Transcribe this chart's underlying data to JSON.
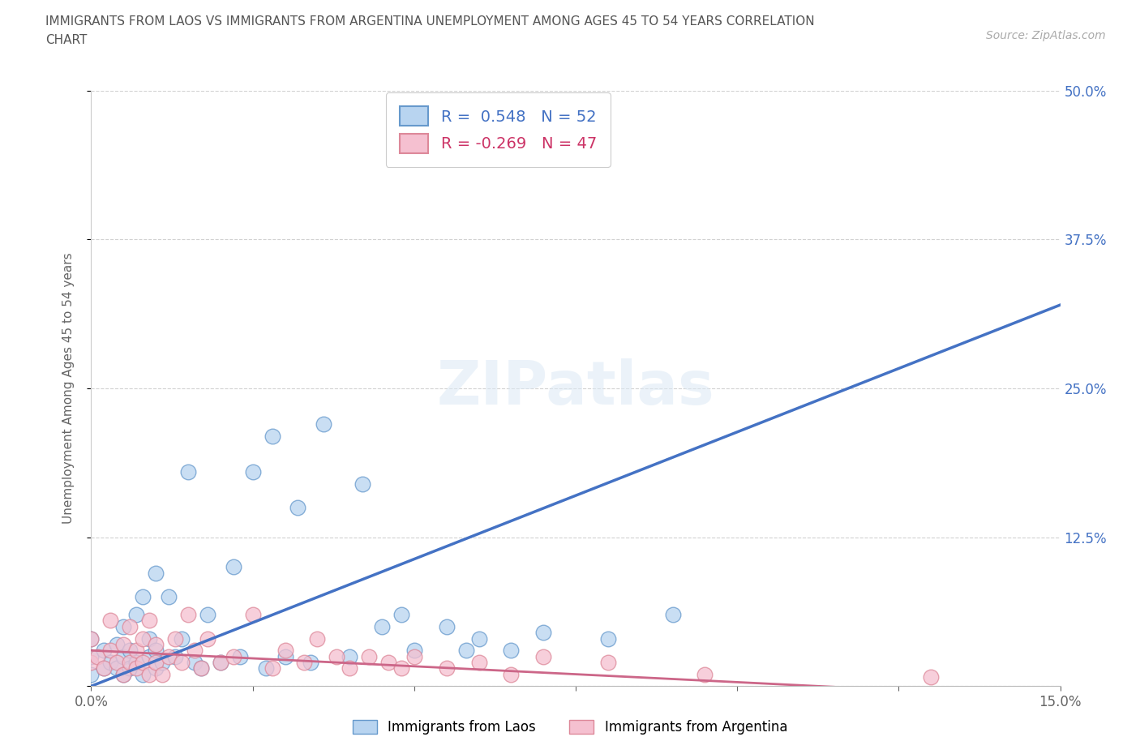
{
  "title_line1": "IMMIGRANTS FROM LAOS VS IMMIGRANTS FROM ARGENTINA UNEMPLOYMENT AMONG AGES 45 TO 54 YEARS CORRELATION",
  "title_line2": "CHART",
  "source_text": "Source: ZipAtlas.com",
  "ylabel": "Unemployment Among Ages 45 to 54 years",
  "xlim": [
    0.0,
    0.15
  ],
  "ylim": [
    0.0,
    0.5
  ],
  "xticks": [
    0.0,
    0.025,
    0.05,
    0.075,
    0.1,
    0.125,
    0.15
  ],
  "xticklabels": [
    "0.0%",
    "",
    "",
    "",
    "",
    "",
    "15.0%"
  ],
  "yticks": [
    0.0,
    0.125,
    0.25,
    0.375,
    0.5
  ],
  "yticklabels_right": [
    "",
    "12.5%",
    "25.0%",
    "37.5%",
    "50.0%"
  ],
  "laos_R": 0.548,
  "laos_N": 52,
  "argentina_R": -0.269,
  "argentina_N": 47,
  "laos_color": "#b8d4f0",
  "laos_edge_color": "#6699cc",
  "laos_line_color": "#4472c4",
  "argentina_color": "#f5c0d0",
  "argentina_edge_color": "#dd8899",
  "argentina_line_color": "#cc6688",
  "legend_label_laos": "Immigrants from Laos",
  "legend_label_argentina": "Immigrants from Argentina",
  "laos_trend_x0": 0.0,
  "laos_trend_y0": 0.0,
  "laos_trend_x1": 0.15,
  "laos_trend_y1": 0.32,
  "argentina_trend_x0": 0.0,
  "argentina_trend_y0": 0.03,
  "argentina_trend_x1": 0.15,
  "argentina_trend_y1": -0.01,
  "laos_x": [
    0.0,
    0.0,
    0.0,
    0.002,
    0.002,
    0.003,
    0.004,
    0.004,
    0.005,
    0.005,
    0.005,
    0.006,
    0.006,
    0.007,
    0.007,
    0.008,
    0.008,
    0.009,
    0.009,
    0.01,
    0.01,
    0.01,
    0.011,
    0.012,
    0.013,
    0.014,
    0.015,
    0.016,
    0.017,
    0.018,
    0.02,
    0.022,
    0.023,
    0.025,
    0.027,
    0.028,
    0.03,
    0.032,
    0.034,
    0.036,
    0.04,
    0.042,
    0.045,
    0.048,
    0.05,
    0.055,
    0.058,
    0.06,
    0.065,
    0.07,
    0.08,
    0.09
  ],
  "laos_y": [
    0.01,
    0.025,
    0.04,
    0.015,
    0.03,
    0.02,
    0.015,
    0.035,
    0.01,
    0.025,
    0.05,
    0.015,
    0.03,
    0.02,
    0.06,
    0.01,
    0.075,
    0.025,
    0.04,
    0.015,
    0.03,
    0.095,
    0.02,
    0.075,
    0.025,
    0.04,
    0.18,
    0.02,
    0.015,
    0.06,
    0.02,
    0.1,
    0.025,
    0.18,
    0.015,
    0.21,
    0.025,
    0.15,
    0.02,
    0.22,
    0.025,
    0.17,
    0.05,
    0.06,
    0.03,
    0.05,
    0.03,
    0.04,
    0.03,
    0.045,
    0.04,
    0.06
  ],
  "argentina_x": [
    0.0,
    0.0,
    0.001,
    0.002,
    0.003,
    0.003,
    0.004,
    0.005,
    0.005,
    0.006,
    0.006,
    0.007,
    0.007,
    0.008,
    0.008,
    0.009,
    0.009,
    0.01,
    0.01,
    0.011,
    0.012,
    0.013,
    0.014,
    0.015,
    0.016,
    0.017,
    0.018,
    0.02,
    0.022,
    0.025,
    0.028,
    0.03,
    0.033,
    0.035,
    0.038,
    0.04,
    0.043,
    0.046,
    0.048,
    0.05,
    0.055,
    0.06,
    0.065,
    0.07,
    0.08,
    0.095,
    0.13
  ],
  "argentina_y": [
    0.02,
    0.04,
    0.025,
    0.015,
    0.03,
    0.055,
    0.02,
    0.01,
    0.035,
    0.02,
    0.05,
    0.015,
    0.03,
    0.02,
    0.04,
    0.01,
    0.055,
    0.02,
    0.035,
    0.01,
    0.025,
    0.04,
    0.02,
    0.06,
    0.03,
    0.015,
    0.04,
    0.02,
    0.025,
    0.06,
    0.015,
    0.03,
    0.02,
    0.04,
    0.025,
    0.015,
    0.025,
    0.02,
    0.015,
    0.025,
    0.015,
    0.02,
    0.01,
    0.025,
    0.02,
    0.01,
    0.008
  ]
}
